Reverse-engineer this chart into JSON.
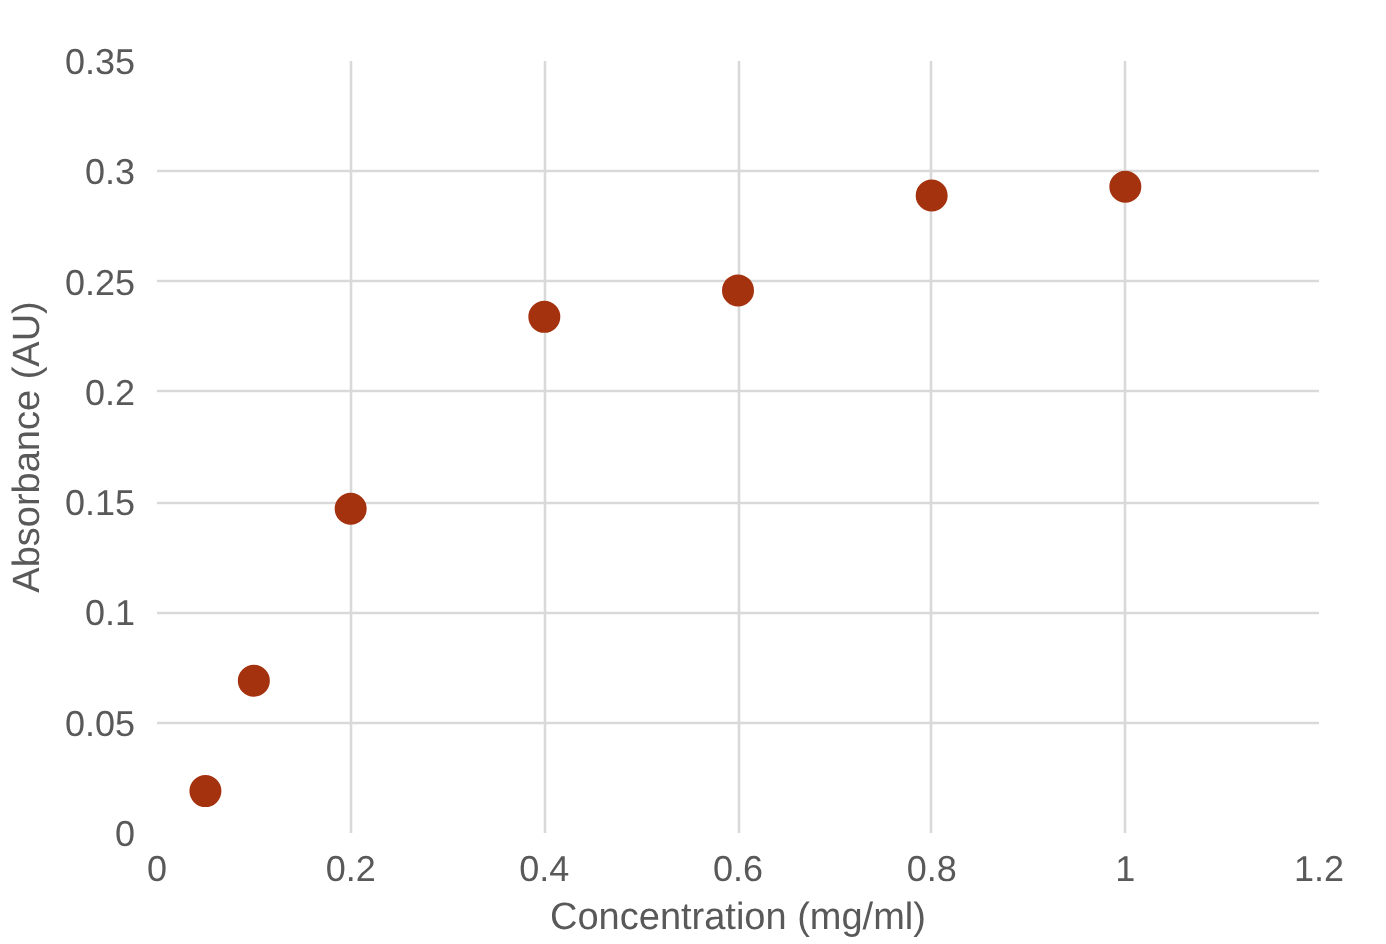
{
  "chart_data": {
    "type": "scatter",
    "xlabel": "Concentration (mg/ml)",
    "ylabel": "Absorbance (AU)",
    "x": [
      0.05,
      0.1,
      0.2,
      0.4,
      0.6,
      0.8,
      1
    ],
    "series": [
      {
        "color": "#a5320f",
        "values": [
          0.019,
          0.069,
          0.147,
          0.234,
          0.246,
          0.289,
          0.293
        ]
      }
    ],
    "xlim": [
      0,
      1.2
    ],
    "xticks": [
      0,
      0.2,
      0.4,
      0.6,
      0.8,
      1,
      1.2
    ],
    "ylim": [
      0,
      0.35
    ],
    "yticks": [
      0,
      0.05,
      0.1,
      0.15,
      0.2,
      0.25,
      0.3,
      0.35
    ],
    "grid": true,
    "marker": "circle"
  }
}
